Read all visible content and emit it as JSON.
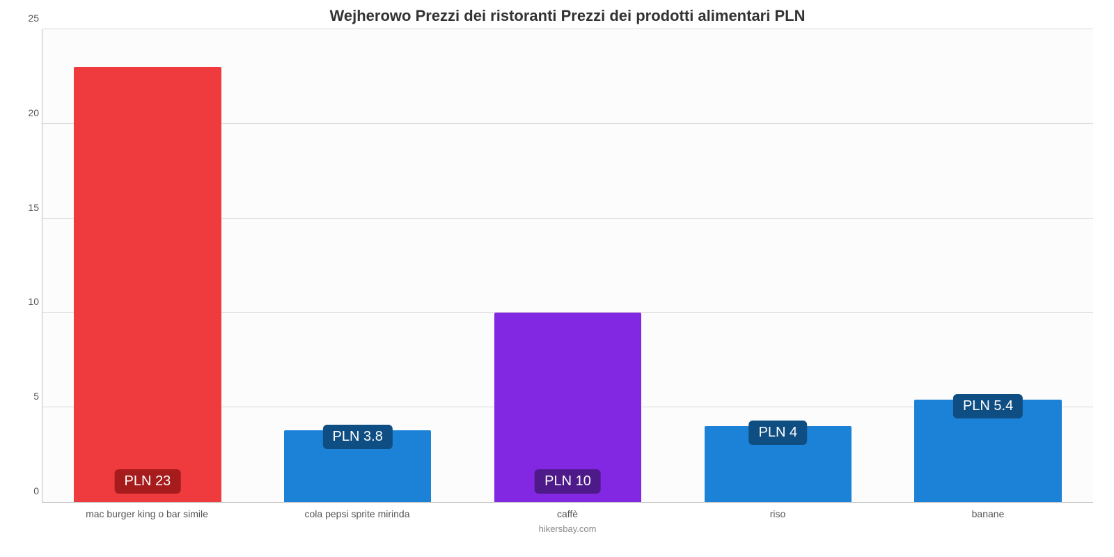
{
  "chart": {
    "type": "bar",
    "title": "Wejherowo Prezzi dei ristoranti Prezzi dei prodotti alimentari PLN",
    "title_fontsize": 22,
    "title_color": "#333333",
    "attribution": "hikersbay.com",
    "attribution_color": "#8a8a8a",
    "background_color": "#fcfcfc",
    "axis_line_color": "#bfbfbf",
    "grid_color": "#d9d9d9",
    "ylim": [
      0,
      25
    ],
    "ytick_step": 5,
    "yticks": [
      0,
      5,
      10,
      15,
      20,
      25
    ],
    "ytick_fontsize": 14,
    "ytick_color": "#555555",
    "xlabel_fontsize": 14,
    "xlabel_color": "#555555",
    "bar_width_pct": 70,
    "value_label_fontsize": 20,
    "value_label_color": "#ffffff",
    "categories": [
      "mac burger king o bar simile",
      "cola pepsi sprite mirinda",
      "caffè",
      "riso",
      "banane"
    ],
    "values": [
      23,
      3.8,
      10,
      4,
      5.4
    ],
    "value_labels": [
      "PLN 23",
      "PLN 3.8",
      "PLN 10",
      "PLN 4",
      "PLN 5.4"
    ],
    "bar_colors": [
      "#ef3a3e",
      "#1c82d8",
      "#8228e2",
      "#1c82d8",
      "#1c82d8"
    ],
    "badge_colors": [
      "#a61b1b",
      "#0f4e83",
      "#4e1a8a",
      "#0f4e83",
      "#0f4e83"
    ]
  }
}
